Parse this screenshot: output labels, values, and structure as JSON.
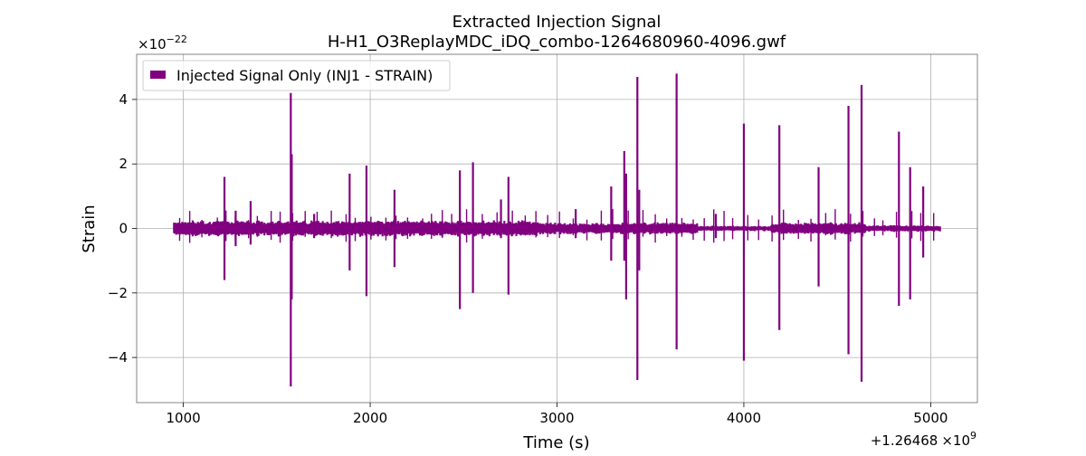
{
  "chart_data": {
    "type": "line",
    "title": "Extracted Injection Signal",
    "subtitle": "H-H1_O3ReplayMDC_iDQ_combo-1264680960-4096.gwf",
    "xlabel": "Time (s)",
    "ylabel": "Strain",
    "x_offset_label": "+1.26468",
    "x_offset_exponent_label": "×10",
    "x_offset_exponent": "9",
    "y_scale_label": "×10",
    "y_scale_exponent": "−22",
    "xlim": [
      750,
      5250
    ],
    "ylim": [
      -5.4,
      5.4
    ],
    "xticks": [
      1000,
      2000,
      3000,
      4000,
      5000
    ],
    "xtick_labels": [
      "1000",
      "2000",
      "3000",
      "4000",
      "5000"
    ],
    "yticks": [
      -4,
      -2,
      0,
      2,
      4
    ],
    "ytick_labels": [
      "−4",
      "−2",
      "0",
      "2",
      "4"
    ],
    "grid": true,
    "legend_position": "top-left",
    "series": [
      {
        "name": "Injected Signal Only (INJ1 - STRAIN)",
        "color": "#800080",
        "x_range": [
          950,
          5050
        ],
        "spikes": [
          {
            "x": 1220,
            "up": 1.6,
            "down": -1.6
          },
          {
            "x": 1280,
            "up": 0.55,
            "down": -0.55
          },
          {
            "x": 1360,
            "up": 0.85,
            "down": -0.5
          },
          {
            "x": 1575,
            "up": 4.2,
            "down": -4.9
          },
          {
            "x": 1580,
            "up": 2.3,
            "down": -2.2
          },
          {
            "x": 1700,
            "up": 0.45,
            "down": -0.3
          },
          {
            "x": 1890,
            "up": 1.7,
            "down": -1.3
          },
          {
            "x": 1980,
            "up": 1.95,
            "down": -2.1
          },
          {
            "x": 2130,
            "up": 1.2,
            "down": -1.2
          },
          {
            "x": 2480,
            "up": 1.8,
            "down": -2.5
          },
          {
            "x": 2550,
            "up": 2.05,
            "down": -2.0
          },
          {
            "x": 2700,
            "up": 0.9,
            "down": -0.3
          },
          {
            "x": 2740,
            "up": 1.6,
            "down": -2.05
          },
          {
            "x": 3100,
            "up": 0.6,
            "down": -0.3
          },
          {
            "x": 3290,
            "up": 1.3,
            "down": -1.0
          },
          {
            "x": 3360,
            "up": 2.4,
            "down": -1.0
          },
          {
            "x": 3370,
            "up": 1.7,
            "down": -2.2
          },
          {
            "x": 3430,
            "up": 4.7,
            "down": -4.7
          },
          {
            "x": 3440,
            "up": 1.2,
            "down": -1.3
          },
          {
            "x": 3640,
            "up": 4.8,
            "down": -3.75
          },
          {
            "x": 3850,
            "up": 0.45,
            "down": -0.3
          },
          {
            "x": 4000,
            "up": 3.25,
            "down": -4.1
          },
          {
            "x": 4190,
            "up": 3.2,
            "down": -3.15
          },
          {
            "x": 4400,
            "up": 1.9,
            "down": -1.8
          },
          {
            "x": 4560,
            "up": 3.8,
            "down": -3.9
          },
          {
            "x": 4630,
            "up": 4.45,
            "down": -4.75
          },
          {
            "x": 4830,
            "up": 3.0,
            "down": -2.4
          },
          {
            "x": 4890,
            "up": 1.9,
            "down": -2.2
          },
          {
            "x": 4960,
            "up": 1.3,
            "down": -0.9
          }
        ]
      }
    ]
  }
}
